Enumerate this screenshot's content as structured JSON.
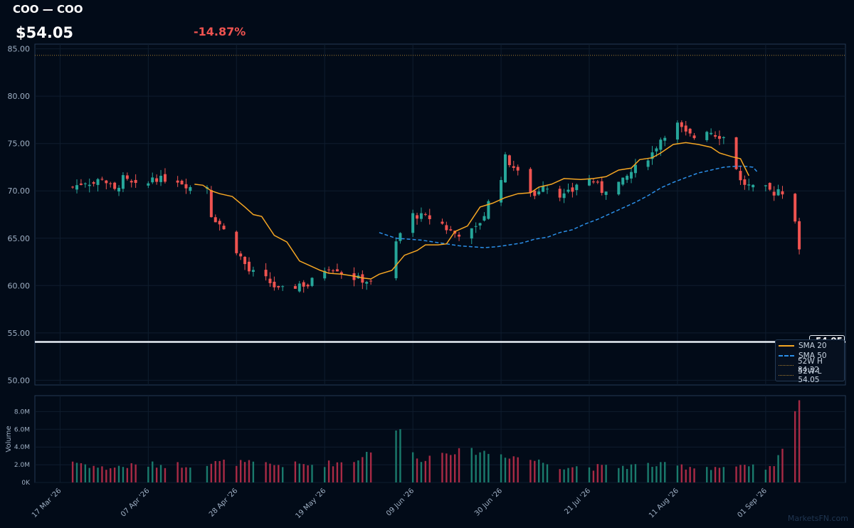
{
  "header": {
    "title": "COO — COO",
    "price": "$54.05",
    "change": "-14.87%"
  },
  "colors": {
    "up": "#26a69a",
    "down": "#ef5350",
    "sma20": "#f5a623",
    "sma50": "#2b8fe8",
    "hi": "#a67c2e",
    "lo": "#a67c2e",
    "change": "#ef5350"
  },
  "legend": {
    "sma20": "SMA 20",
    "sma50": "SMA 50",
    "hi": "52W H 84.32",
    "lo": "52W L 54.05"
  },
  "price_tag": "54.05",
  "watermark": "MarketsFN.com",
  "chart_data": {
    "type": "candlestick",
    "title": "COO — COO",
    "y_ticks": [
      "85.00",
      "80.00",
      "75.00",
      "70.00",
      "65.00",
      "60.00",
      "55.00",
      "50.00"
    ],
    "ylim": [
      49.5,
      85.5
    ],
    "volume_ylabel": "Volume",
    "volume_ticks": [
      "0K",
      "2.0M",
      "4.0M",
      "6.0M",
      "8.0M"
    ],
    "volume_ylim": [
      0,
      9800000
    ],
    "x_labels": [
      "17 Mar '26",
      "07 Apr '26",
      "28 Apr '26",
      "19 May '26",
      "09 Jun '26",
      "30 Jun '26",
      "21 Jul '26",
      "11 Aug '26",
      "01 Sep '26"
    ],
    "x_label_days": [
      0,
      21,
      42,
      63,
      84,
      105,
      126,
      147,
      168
    ],
    "x_range_days": [
      -6,
      187
    ],
    "ohlc_anchors": [
      [
        3,
        70.4
      ],
      [
        6,
        71.0
      ],
      [
        8,
        70.8
      ],
      [
        10,
        71.4
      ],
      [
        13,
        70.0
      ],
      [
        15,
        71.3
      ],
      [
        17,
        70.7
      ],
      [
        20,
        70.0
      ],
      [
        22,
        71.5
      ],
      [
        24,
        71.2
      ],
      [
        27,
        71.4
      ],
      [
        29,
        70.9
      ],
      [
        31,
        70.4
      ],
      [
        35,
        70.5
      ],
      [
        36,
        67.5
      ],
      [
        38,
        66.5
      ],
      [
        41,
        64.5
      ],
      [
        43,
        63.0
      ],
      [
        45,
        61.5
      ],
      [
        48,
        61.0
      ],
      [
        50,
        60.3
      ],
      [
        52,
        59.5
      ],
      [
        55,
        59.6
      ],
      [
        57,
        60.2
      ],
      [
        59,
        60.0
      ],
      [
        62,
        61.5
      ],
      [
        64,
        62.0
      ],
      [
        66,
        61.8
      ],
      [
        68,
        61.0
      ],
      [
        70,
        60.8
      ],
      [
        73,
        60.5
      ],
      [
        76,
        59.8
      ],
      [
        80,
        64.5
      ],
      [
        81,
        65.5
      ],
      [
        83,
        67.5
      ],
      [
        85,
        67.4
      ],
      [
        87,
        67.2
      ],
      [
        90,
        67.0
      ],
      [
        92,
        66.0
      ],
      [
        94,
        65.5
      ],
      [
        97,
        65.5
      ],
      [
        99,
        66.0
      ],
      [
        101,
        67.5
      ],
      [
        103,
        70.0
      ],
      [
        105,
        71.5
      ],
      [
        106,
        73.5
      ],
      [
        108,
        72.5
      ],
      [
        111,
        70.5
      ],
      [
        113,
        69.5
      ],
      [
        115,
        70.8
      ],
      [
        117,
        70.0
      ],
      [
        120,
        69.5
      ],
      [
        122,
        70.0
      ],
      [
        124,
        71.5
      ],
      [
        127,
        71.0
      ],
      [
        129,
        70.0
      ],
      [
        131,
        70.5
      ],
      [
        134,
        71.0
      ],
      [
        136,
        72.0
      ],
      [
        138,
        72.8
      ],
      [
        141,
        74.0
      ],
      [
        143,
        75.5
      ],
      [
        145,
        76.5
      ],
      [
        147,
        77.0
      ],
      [
        149,
        76.0
      ],
      [
        152,
        75.5
      ],
      [
        154,
        76.5
      ],
      [
        156,
        76.0
      ],
      [
        159,
        75.5
      ],
      [
        161,
        72.5
      ],
      [
        162,
        71.0
      ],
      [
        164,
        70.5
      ],
      [
        166,
        70.0
      ],
      [
        168,
        70.2
      ],
      [
        170,
        69.8
      ],
      [
        171,
        70.2
      ],
      [
        173,
        69.6
      ],
      [
        175,
        67.0
      ],
      [
        176,
        63.5
      ]
    ],
    "ohlc_gaps": [
      [
        19,
        20
      ],
      [
        26,
        27
      ],
      [
        33,
        34
      ],
      [
        40,
        41
      ],
      [
        47,
        48
      ],
      [
        54,
        55
      ],
      [
        61,
        62
      ],
      [
        68,
        69
      ],
      [
        75,
        76
      ],
      [
        82,
        83
      ],
      [
        89,
        90
      ],
      [
        96,
        97
      ],
      [
        103,
        104
      ],
      [
        110,
        111
      ],
      [
        117,
        118
      ],
      [
        124,
        125
      ],
      [
        131,
        132
      ],
      [
        138,
        139
      ],
      [
        145,
        146
      ],
      [
        152,
        153
      ],
      [
        159,
        160
      ],
      [
        166,
        167
      ],
      [
        173,
        174
      ]
    ],
    "ohlc_missing": [
      [
        32,
        33
      ],
      [
        77,
        79
      ],
      [
        167,
        167
      ],
      [
        174,
        174
      ]
    ],
    "volume_anchors": [
      [
        3,
        2.4
      ],
      [
        10,
        1.6
      ],
      [
        20,
        2.0
      ],
      [
        30,
        2.0
      ],
      [
        40,
        2.3
      ],
      [
        50,
        2.0
      ],
      [
        60,
        2.0
      ],
      [
        70,
        2.4
      ],
      [
        75,
        4.0
      ],
      [
        78,
        6.5
      ],
      [
        82,
        5.5
      ],
      [
        85,
        2.5
      ],
      [
        92,
        3.5
      ],
      [
        100,
        3.5
      ],
      [
        110,
        2.8
      ],
      [
        120,
        1.8
      ],
      [
        130,
        1.7
      ],
      [
        140,
        2.0
      ],
      [
        150,
        1.8
      ],
      [
        160,
        1.7
      ],
      [
        170,
        1.6
      ],
      [
        176,
        9.4
      ],
      [
        177,
        4.8
      ]
    ],
    "sma20": [
      [
        32,
        70.7
      ],
      [
        34,
        70.6
      ],
      [
        36,
        70.0
      ],
      [
        38,
        69.7
      ],
      [
        41,
        69.4
      ],
      [
        44,
        68.3
      ],
      [
        46,
        67.5
      ],
      [
        48,
        67.3
      ],
      [
        51,
        65.3
      ],
      [
        54,
        64.6
      ],
      [
        57,
        62.6
      ],
      [
        60,
        62.0
      ],
      [
        62,
        61.6
      ],
      [
        64,
        61.3
      ],
      [
        67,
        61.2
      ],
      [
        70,
        61.0
      ],
      [
        72,
        60.8
      ],
      [
        74,
        60.7
      ],
      [
        76,
        61.2
      ],
      [
        79,
        61.6
      ],
      [
        82,
        63.2
      ],
      [
        85,
        63.7
      ],
      [
        87,
        64.3
      ],
      [
        90,
        64.3
      ],
      [
        92,
        64.4
      ],
      [
        94,
        65.7
      ],
      [
        97,
        66.3
      ],
      [
        100,
        68.3
      ],
      [
        103,
        68.7
      ],
      [
        106,
        69.3
      ],
      [
        109,
        69.7
      ],
      [
        112,
        69.8
      ],
      [
        114,
        70.4
      ],
      [
        117,
        70.7
      ],
      [
        120,
        71.3
      ],
      [
        124,
        71.2
      ],
      [
        127,
        71.3
      ],
      [
        130,
        71.5
      ],
      [
        133,
        72.2
      ],
      [
        136,
        72.4
      ],
      [
        138,
        73.3
      ],
      [
        141,
        73.5
      ],
      [
        143,
        74.0
      ],
      [
        146,
        74.9
      ],
      [
        149,
        75.1
      ],
      [
        152,
        74.9
      ],
      [
        155,
        74.6
      ],
      [
        157,
        74.0
      ],
      [
        160,
        73.6
      ],
      [
        162,
        73.4
      ],
      [
        163,
        72.5
      ],
      [
        164,
        71.6
      ]
    ],
    "sma50": [
      [
        76,
        65.6
      ],
      [
        78,
        65.3
      ],
      [
        80,
        65.0
      ],
      [
        83,
        64.9
      ],
      [
        86,
        64.8
      ],
      [
        89,
        64.6
      ],
      [
        92,
        64.4
      ],
      [
        95,
        64.2
      ],
      [
        98,
        64.1
      ],
      [
        101,
        64.0
      ],
      [
        104,
        64.1
      ],
      [
        107,
        64.3
      ],
      [
        110,
        64.5
      ],
      [
        113,
        64.9
      ],
      [
        116,
        65.1
      ],
      [
        119,
        65.6
      ],
      [
        122,
        65.9
      ],
      [
        125,
        66.5
      ],
      [
        128,
        67.0
      ],
      [
        131,
        67.6
      ],
      [
        134,
        68.2
      ],
      [
        137,
        68.8
      ],
      [
        140,
        69.5
      ],
      [
        143,
        70.3
      ],
      [
        146,
        70.9
      ],
      [
        149,
        71.4
      ],
      [
        152,
        71.9
      ],
      [
        155,
        72.2
      ],
      [
        158,
        72.5
      ],
      [
        161,
        72.6
      ],
      [
        163,
        72.6
      ],
      [
        165,
        72.5
      ],
      [
        166,
        72.0
      ]
    ],
    "hi_52w": 84.32,
    "lo_52w": 54.05,
    "last_close": 54.05
  }
}
